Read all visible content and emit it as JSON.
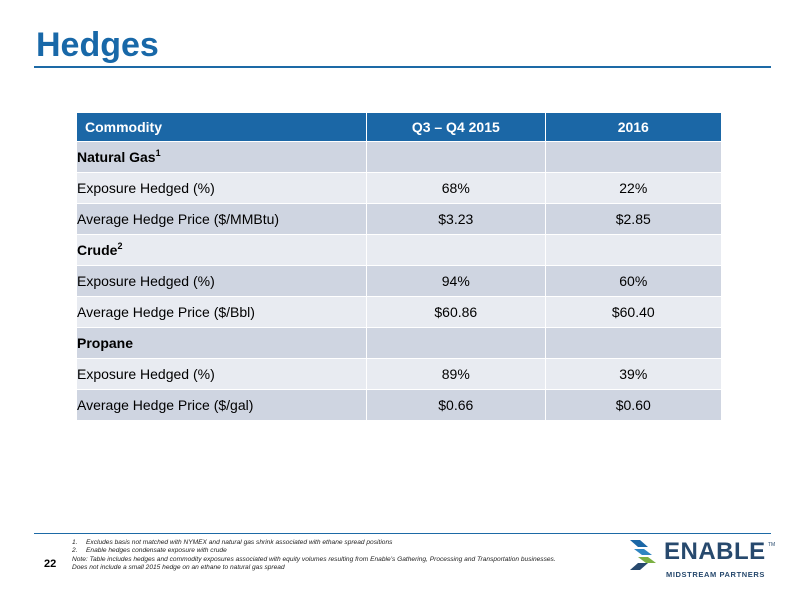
{
  "slide": {
    "title": "Hedges",
    "page_number": "22"
  },
  "table": {
    "headers": [
      "Commodity",
      "Q3 – Q4 2015",
      "2016"
    ],
    "rows": [
      {
        "type": "category",
        "label": "Natural Gas",
        "sup": "1",
        "q3q4_2015": "",
        "y2016": ""
      },
      {
        "type": "item",
        "label": "Exposure Hedged (%)",
        "q3q4_2015": "68%",
        "y2016": "22%"
      },
      {
        "type": "item",
        "label": "Average Hedge Price ($/MMBtu)",
        "q3q4_2015": "$3.23",
        "y2016": "$2.85"
      },
      {
        "type": "category",
        "label": "Crude",
        "sup": "2",
        "q3q4_2015": "",
        "y2016": ""
      },
      {
        "type": "item",
        "label": "Exposure Hedged (%)",
        "q3q4_2015": "94%",
        "y2016": "60%"
      },
      {
        "type": "item",
        "label": "Average Hedge Price ($/Bbl)",
        "q3q4_2015": "$60.86",
        "y2016": "$60.40"
      },
      {
        "type": "category",
        "label": "Propane",
        "sup": "",
        "q3q4_2015": "",
        "y2016": ""
      },
      {
        "type": "item",
        "label": "Exposure Hedged (%)",
        "q3q4_2015": "89%",
        "y2016": "39%"
      },
      {
        "type": "item",
        "label": "Average Hedge Price ($/gal)",
        "q3q4_2015": "$0.66",
        "y2016": "$0.60"
      }
    ]
  },
  "footnotes": {
    "items": [
      {
        "num": "1.",
        "text": "Excludes basis not matched with NYMEX and natural gas shrink associated with ethane spread positions"
      },
      {
        "num": "2.",
        "text": "Enable hedges condensate exposure with crude"
      }
    ],
    "note": "Note: Table includes hedges and commodity exposures associated with equity volumes resulting from Enable’s Gathering, Processing and Transportation businesses. Does not include a small 2015 hedge on an ethane to natural gas spread"
  },
  "logo": {
    "wordmark": "ENABLE",
    "tagline": "MIDSTREAM PARTNERS",
    "tm": "TM",
    "colors": {
      "navy": "#27496d",
      "green": "#7bb042",
      "blue": "#1b67a6"
    }
  },
  "colors": {
    "title": "#1868a8",
    "header_bg": "#1b67a6",
    "row_dark": "#cfd5e1",
    "row_light": "#e8ebf1"
  }
}
